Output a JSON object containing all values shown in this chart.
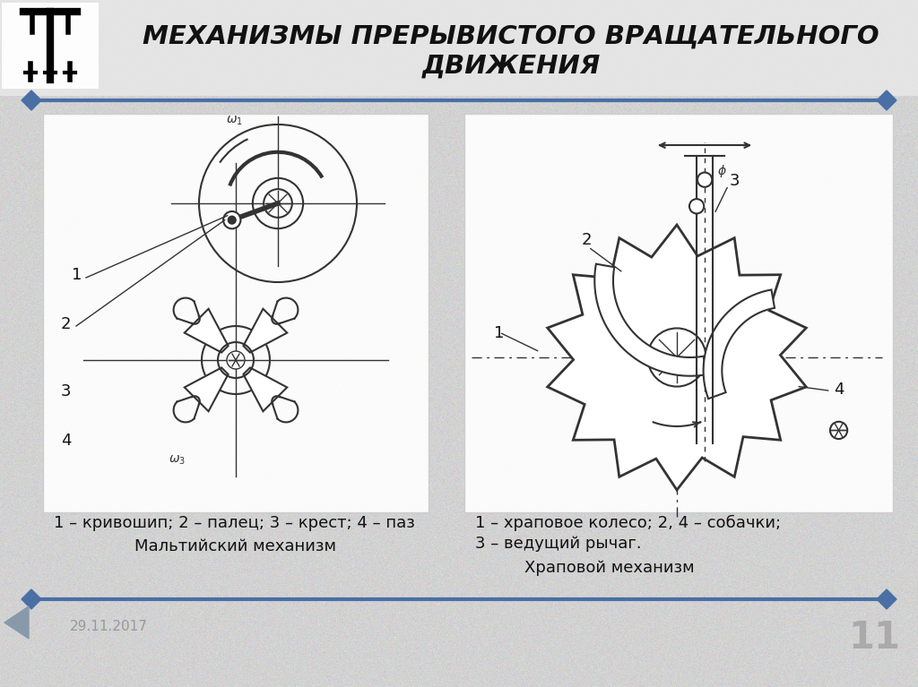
{
  "title_line1": "МЕХАНИЗМЫ ПРЕРЫВИСТОГО ВРАЩАТЕЛЬНОГО",
  "title_line2": "ДВИЖЕНИЯ",
  "bg_color": "#d0d0d0",
  "slide_bg": "#d0d0d0",
  "line_color": "#4a6fa5",
  "diamond_color": "#4a6fa5",
  "title_color": "#111111",
  "caption_left_line1": "1 – кривошип; 2 – палец; 3 – крест; 4 – паз",
  "caption_left_line2": "Мальтийский механизм",
  "caption_right_line1": "1 – храповое колесо; 2, 4 – собачки;",
  "caption_right_line2": "3 – ведущий рычаг.",
  "caption_right_line3": "Храповой механизм",
  "date_text": "29.11.2017",
  "page_num": "11"
}
